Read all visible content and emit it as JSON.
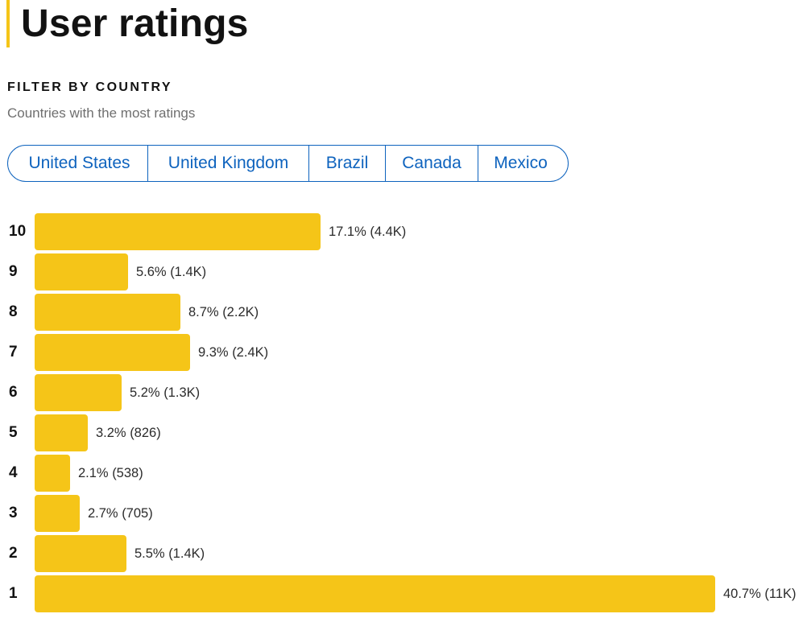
{
  "page": {
    "title": "User ratings"
  },
  "filter": {
    "heading": "FILTER BY COUNTRY",
    "subtitle": "Countries with the most ratings",
    "countries": [
      "United States",
      "United Kingdom",
      "Brazil",
      "Canada",
      "Mexico"
    ]
  },
  "colors": {
    "accent": "#f5c518",
    "link": "#0e63be",
    "text": "#121212"
  },
  "ratings": [
    {
      "rating": "10",
      "percent": 17.1,
      "label": "17.1% (4.4K)"
    },
    {
      "rating": "9",
      "percent": 5.6,
      "label": "5.6% (1.4K)"
    },
    {
      "rating": "8",
      "percent": 8.7,
      "label": "8.7% (2.2K)"
    },
    {
      "rating": "7",
      "percent": 9.3,
      "label": "9.3% (2.4K)"
    },
    {
      "rating": "6",
      "percent": 5.2,
      "label": "5.2% (1.3K)"
    },
    {
      "rating": "5",
      "percent": 3.2,
      "label": "3.2% (826)"
    },
    {
      "rating": "4",
      "percent": 2.1,
      "label": "2.1% (538)"
    },
    {
      "rating": "3",
      "percent": 2.7,
      "label": "2.7% (705)"
    },
    {
      "rating": "2",
      "percent": 5.5,
      "label": "5.5% (1.4K)"
    },
    {
      "rating": "1",
      "percent": 40.7,
      "label": "40.7% (11K)"
    }
  ]
}
